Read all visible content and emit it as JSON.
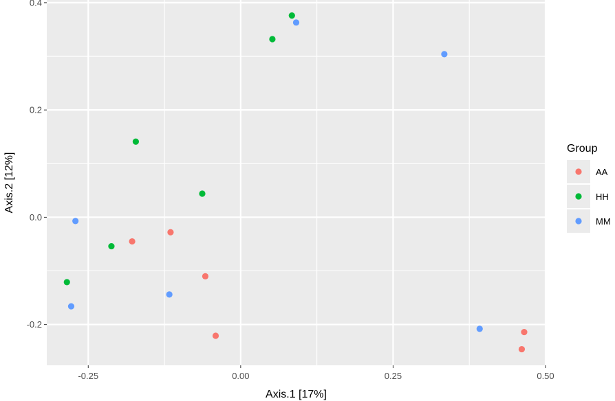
{
  "chart_data": {
    "type": "scatter",
    "xlabel": "Axis.1   [17%]",
    "ylabel": "Axis.2   [12%]",
    "xlim": [
      -0.318,
      0.5
    ],
    "ylim": [
      -0.276,
      0.405
    ],
    "x_ticks": [
      -0.25,
      0.0,
      0.25,
      0.5
    ],
    "x_tick_labels": [
      "-0.25",
      "0.00",
      "0.25",
      "0.50"
    ],
    "y_ticks": [
      -0.2,
      0.0,
      0.2,
      0.4
    ],
    "y_tick_labels": [
      "-0.2",
      "0.0",
      "0.2",
      "0.4"
    ],
    "grid": true,
    "legend": {
      "title": "Group",
      "position": "right"
    },
    "series": [
      {
        "name": "AA",
        "color": "#F8766D",
        "points": [
          {
            "x": -0.178,
            "y": -0.045
          },
          {
            "x": -0.115,
            "y": -0.028
          },
          {
            "x": -0.058,
            "y": -0.11
          },
          {
            "x": -0.041,
            "y": -0.221
          },
          {
            "x": 0.465,
            "y": -0.214
          },
          {
            "x": 0.461,
            "y": -0.246
          }
        ]
      },
      {
        "name": "HH",
        "color": "#00BA38",
        "points": [
          {
            "x": 0.084,
            "y": 0.376
          },
          {
            "x": 0.052,
            "y": 0.332
          },
          {
            "x": -0.172,
            "y": 0.141
          },
          {
            "x": -0.063,
            "y": 0.044
          },
          {
            "x": -0.212,
            "y": -0.054
          },
          {
            "x": -0.285,
            "y": -0.121
          }
        ]
      },
      {
        "name": "MM",
        "color": "#619CFF",
        "points": [
          {
            "x": 0.091,
            "y": 0.363
          },
          {
            "x": 0.334,
            "y": 0.304
          },
          {
            "x": -0.271,
            "y": -0.007
          },
          {
            "x": -0.117,
            "y": -0.144
          },
          {
            "x": -0.278,
            "y": -0.166
          },
          {
            "x": 0.392,
            "y": -0.208
          }
        ]
      }
    ]
  }
}
